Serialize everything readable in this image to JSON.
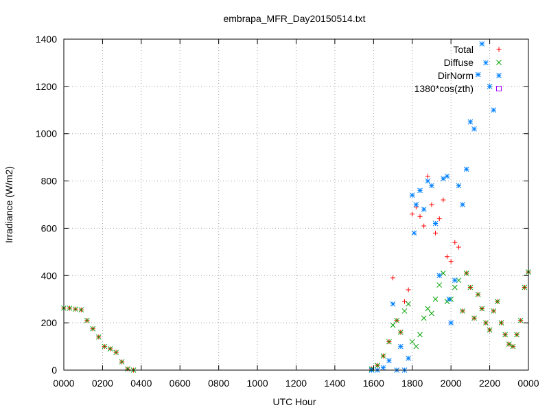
{
  "chart_data": {
    "type": "scatter",
    "title": "embrapa_MFR_Day20150514.txt",
    "xlabel": "UTC Hour",
    "ylabel": "Irradiance (W/m2)",
    "xlim": [
      0,
      24
    ],
    "ylim": [
      0,
      1400
    ],
    "grid": true,
    "legend_position": "top-right",
    "x_ticks": [
      {
        "value": 0,
        "label": "0000"
      },
      {
        "value": 2,
        "label": "0200"
      },
      {
        "value": 4,
        "label": "0400"
      },
      {
        "value": 6,
        "label": "0600"
      },
      {
        "value": 8,
        "label": "0800"
      },
      {
        "value": 10,
        "label": "1000"
      },
      {
        "value": 12,
        "label": "1200"
      },
      {
        "value": 14,
        "label": "1400"
      },
      {
        "value": 16,
        "label": "1600"
      },
      {
        "value": 18,
        "label": "1800"
      },
      {
        "value": 20,
        "label": "2000"
      },
      {
        "value": 22,
        "label": "2200"
      },
      {
        "value": 24,
        "label": "0000"
      }
    ],
    "y_ticks": [
      0,
      200,
      400,
      600,
      800,
      1000,
      1200,
      1400
    ],
    "series": [
      {
        "name": "Total",
        "marker": "plus",
        "color": "#ff0000",
        "x": [
          0.0,
          0.3,
          0.6,
          0.9,
          1.2,
          1.5,
          1.8,
          2.1,
          2.4,
          2.7,
          3.0,
          3.3,
          3.6,
          15.9,
          16.2,
          16.5,
          16.8,
          17.0,
          17.2,
          17.4,
          17.6,
          17.8,
          18.0,
          18.2,
          18.4,
          18.6,
          18.8,
          19.0,
          19.2,
          19.4,
          19.6,
          19.8,
          20.0,
          20.2,
          20.4,
          20.6,
          20.8,
          21.0,
          21.2,
          21.4,
          21.6,
          21.8,
          22.0,
          22.2,
          22.4,
          22.6,
          22.8,
          23.0,
          23.2,
          23.4,
          23.6,
          23.8,
          24.0
        ],
        "y": [
          262,
          262,
          258,
          255,
          210,
          175,
          140,
          100,
          90,
          75,
          35,
          5,
          0,
          5,
          20,
          60,
          120,
          390,
          210,
          160,
          290,
          340,
          660,
          690,
          650,
          610,
          820,
          700,
          580,
          640,
          720,
          480,
          460,
          540,
          520,
          250,
          410,
          350,
          220,
          320,
          260,
          200,
          170,
          250,
          290,
          200,
          150,
          110,
          100,
          150,
          210,
          350,
          415
        ]
      },
      {
        "name": "Diffuse",
        "marker": "cross",
        "color": "#00a000",
        "x": [
          0.0,
          0.3,
          0.6,
          0.9,
          1.2,
          1.5,
          1.8,
          2.1,
          2.4,
          2.7,
          3.0,
          3.3,
          3.6,
          15.9,
          16.2,
          16.5,
          16.8,
          17.0,
          17.2,
          17.4,
          17.6,
          17.8,
          18.0,
          18.2,
          18.4,
          18.6,
          18.8,
          19.0,
          19.2,
          19.4,
          19.6,
          19.8,
          20.0,
          20.2,
          20.4,
          20.6,
          20.8,
          21.0,
          21.2,
          21.4,
          21.6,
          21.8,
          22.0,
          22.2,
          22.4,
          22.6,
          22.8,
          23.0,
          23.2,
          23.4,
          23.6,
          23.8,
          24.0
        ],
        "y": [
          262,
          262,
          258,
          255,
          210,
          175,
          140,
          100,
          90,
          75,
          35,
          5,
          0,
          5,
          20,
          60,
          120,
          190,
          210,
          160,
          250,
          280,
          120,
          100,
          150,
          220,
          260,
          240,
          300,
          360,
          410,
          290,
          300,
          350,
          380,
          250,
          410,
          350,
          220,
          320,
          260,
          200,
          170,
          250,
          290,
          200,
          150,
          110,
          100,
          150,
          210,
          350,
          415
        ]
      },
      {
        "name": "DirNorm",
        "marker": "star",
        "color": "#0080ff",
        "x": [
          15.9,
          16.2,
          16.5,
          16.8,
          17.0,
          17.2,
          17.4,
          17.6,
          17.8,
          18.0,
          18.1,
          18.2,
          18.4,
          18.6,
          18.8,
          19.0,
          19.2,
          19.4,
          19.6,
          19.8,
          19.9,
          20.0,
          20.2,
          20.4,
          20.6,
          20.8,
          21.0,
          21.2,
          21.4,
          21.6,
          21.8,
          22.0,
          22.2
        ],
        "y": [
          0,
          0,
          10,
          40,
          280,
          0,
          100,
          0,
          50,
          740,
          580,
          700,
          760,
          680,
          800,
          780,
          620,
          400,
          810,
          820,
          300,
          200,
          380,
          780,
          700,
          850,
          1050,
          1020,
          1250,
          1380,
          1300,
          1200,
          1100
        ]
      },
      {
        "name": "1380*cos(zth)",
        "marker": "square",
        "color": "#a000ff",
        "x": [],
        "y": []
      }
    ]
  }
}
